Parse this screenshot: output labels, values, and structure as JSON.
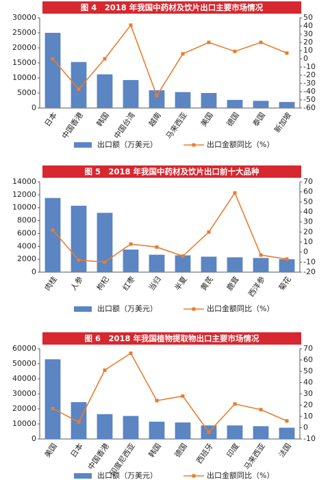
{
  "chart_data": [
    {
      "type": "combo",
      "title": "图 4　2018 年我国中药材及饮片出口主要市场情况",
      "categories": [
        "日本",
        "中国香港",
        "韩国",
        "中国台湾",
        "越南",
        "马来西亚",
        "美国",
        "德国",
        "泰国",
        "新加坡"
      ],
      "series": [
        {
          "name": "出口额（万美元）",
          "type": "bar",
          "color": "#5b85c3",
          "values": [
            25000,
            15300,
            11200,
            9300,
            5900,
            5300,
            5000,
            2700,
            2400,
            2000
          ]
        },
        {
          "name": "出口金额同比（%）",
          "type": "line",
          "axis": "y2",
          "color": "#e87d2e",
          "values": [
            0,
            -37,
            0,
            41,
            -45,
            6,
            20,
            9,
            20,
            7
          ]
        }
      ],
      "ylim": [
        0,
        30000
      ],
      "yticks": [
        0,
        5000,
        10000,
        15000,
        20000,
        25000,
        30000
      ],
      "y2lim": [
        -60,
        50
      ],
      "y2ticks": [
        -60,
        -50,
        -40,
        -30,
        -20,
        -10,
        0,
        10,
        20,
        30,
        40,
        50
      ]
    },
    {
      "type": "combo",
      "title": "图 5　2018 年我国中药材及饮片出口前十大品种",
      "categories": [
        "肉桂",
        "人参",
        "枸杞",
        "红枣",
        "当归",
        "半夏",
        "黄芪",
        "鹿茸",
        "西洋参",
        "菊花"
      ],
      "series": [
        {
          "name": "出口额（万美元）",
          "type": "bar",
          "color": "#5b85c3",
          "values": [
            11500,
            10300,
            9200,
            3500,
            2700,
            2600,
            2400,
            2300,
            2200,
            2000
          ]
        },
        {
          "name": "出口金额同比（%）",
          "type": "line",
          "axis": "y2",
          "color": "#e87d2e",
          "values": [
            22,
            -8,
            -10,
            8,
            5,
            -4,
            20,
            59,
            -3,
            -7
          ]
        }
      ],
      "ylim": [
        0,
        14000
      ],
      "yticks": [
        0,
        2000,
        4000,
        6000,
        8000,
        10000,
        12000,
        14000
      ],
      "y2lim": [
        -20,
        70
      ],
      "y2ticks": [
        -20,
        -10,
        0,
        10,
        20,
        30,
        40,
        50,
        60,
        70
      ]
    },
    {
      "type": "combo",
      "title": "图 6　2018 年我国植物提取物出口主要市场情况",
      "categories": [
        "美国",
        "日本",
        "中国香港",
        "印度尼西亚",
        "韩国",
        "德国",
        "西班牙",
        "印度",
        "马来西亚",
        "法国"
      ],
      "series": [
        {
          "name": "出口额（万美元）",
          "type": "bar",
          "color": "#5b85c3",
          "values": [
            53000,
            24500,
            16500,
            15300,
            11500,
            11000,
            9000,
            9000,
            8500,
            7500
          ]
        },
        {
          "name": "出口金额同比（%）",
          "type": "line",
          "axis": "y2",
          "color": "#e87d2e",
          "values": [
            17,
            5,
            51,
            66,
            24,
            28,
            -4,
            21,
            16,
            6
          ]
        }
      ],
      "ylim": [
        0,
        60000
      ],
      "yticks": [
        0,
        10000,
        20000,
        30000,
        40000,
        50000,
        60000
      ],
      "y2lim": [
        -10,
        70
      ],
      "y2ticks": [
        -10,
        0,
        10,
        20,
        30,
        40,
        50,
        60,
        70
      ]
    }
  ]
}
